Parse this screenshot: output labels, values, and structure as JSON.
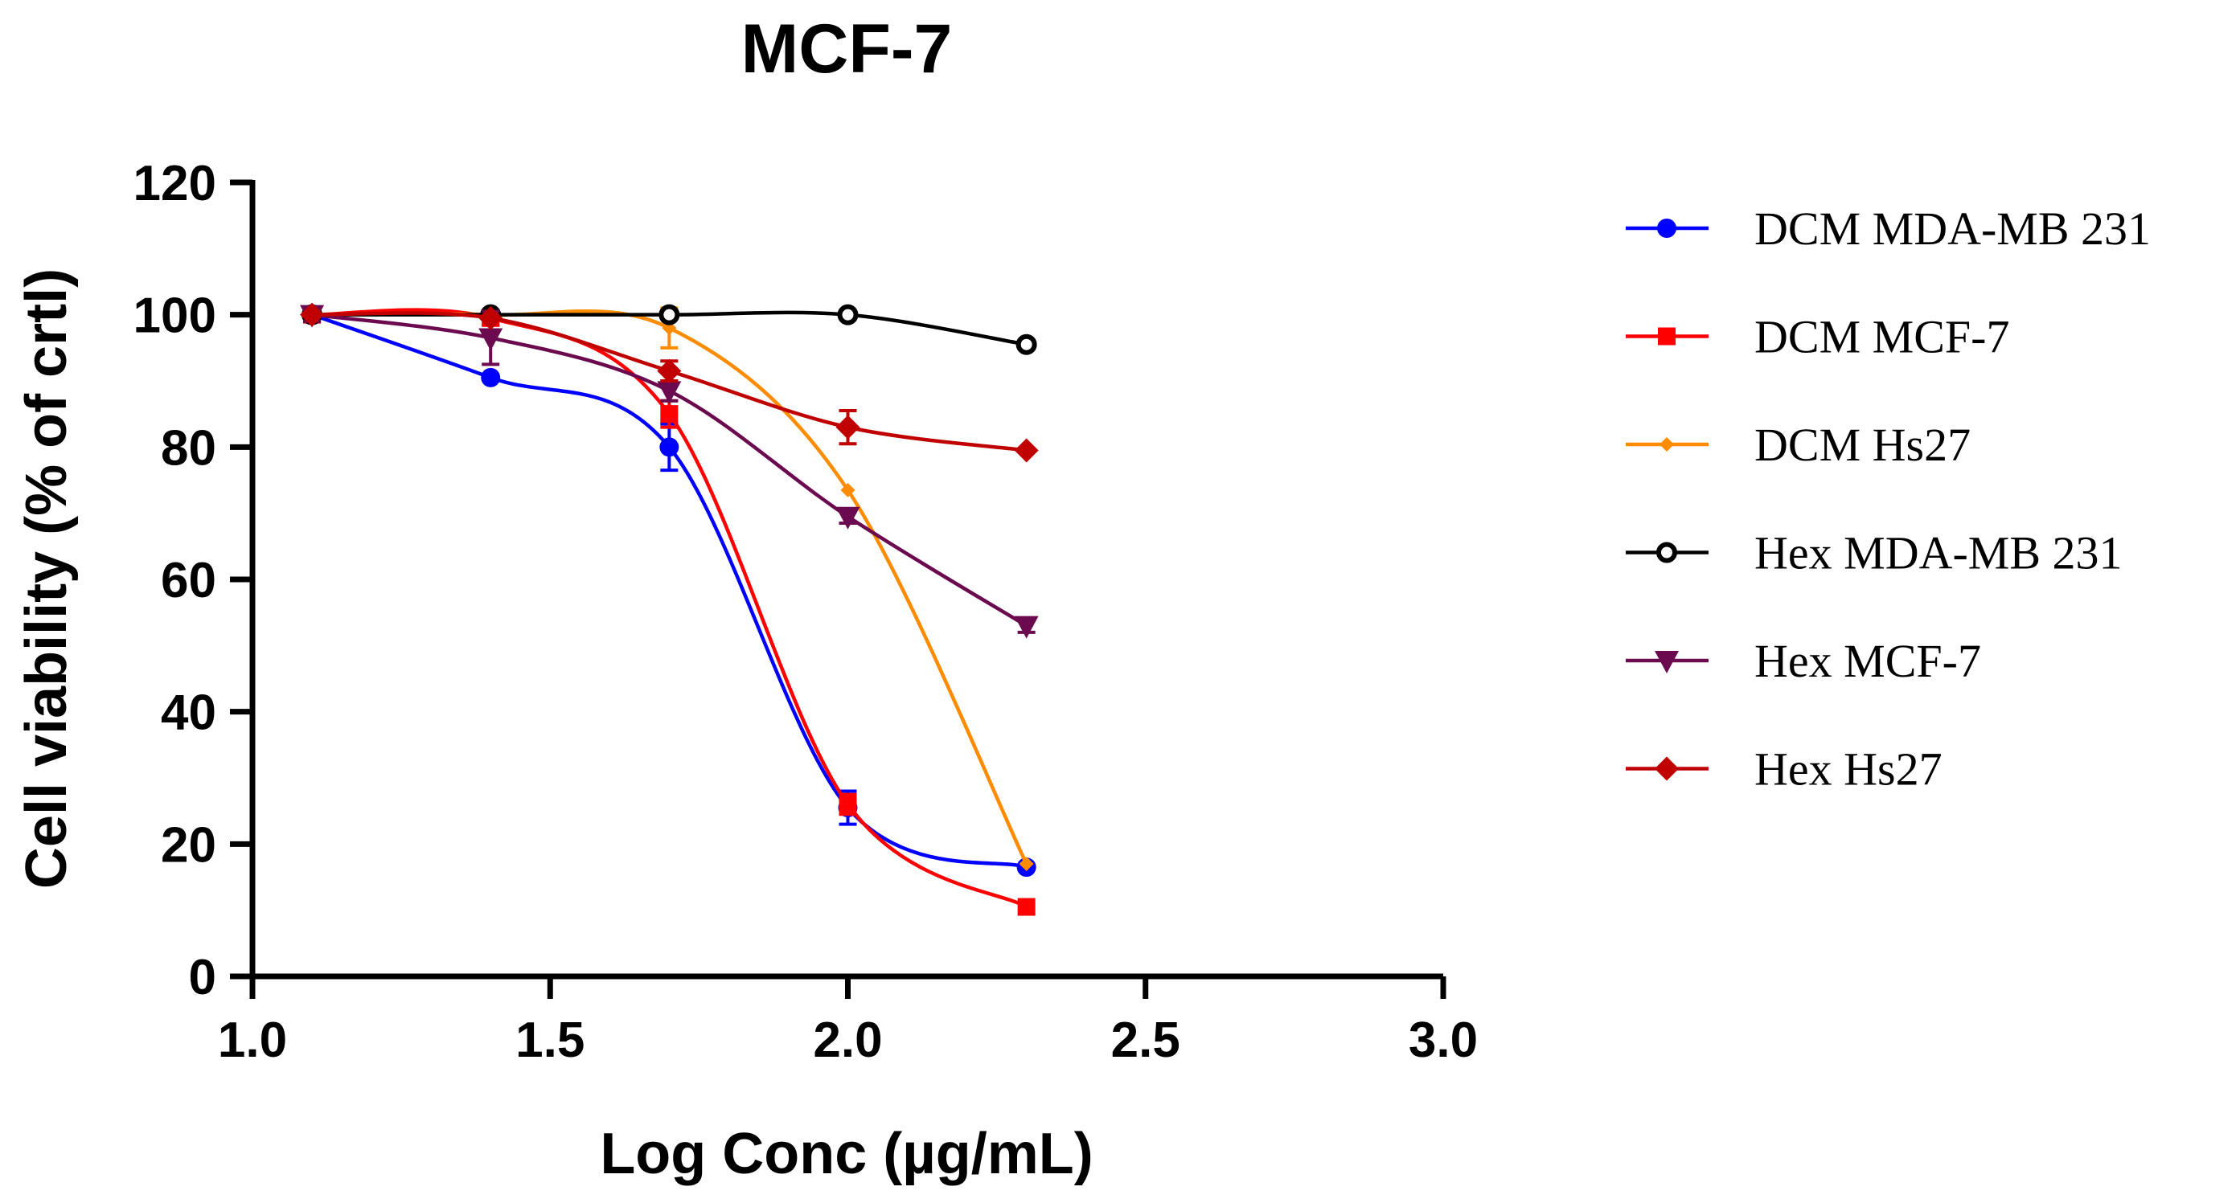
{
  "chart_data": {
    "type": "line",
    "title": "MCF-7",
    "xlabel": "Log Conc (µg/mL)",
    "ylabel": "Cell viability (% of crtl)",
    "xlim": [
      1.0,
      3.0
    ],
    "ylim": [
      0,
      120
    ],
    "xticks": [
      "1.0",
      "1.5",
      "2.0",
      "2.5",
      "3.0"
    ],
    "yticks": [
      "0",
      "20",
      "40",
      "60",
      "80",
      "100",
      "120"
    ],
    "legend_position": "right",
    "x": [
      1.1,
      1.4,
      1.7,
      2.0,
      2.3
    ],
    "series": [
      {
        "name": "DCM MDA-MB 231",
        "color": "#0000ff",
        "marker": "circle",
        "values": [
          100,
          90.5,
          80,
          25.5,
          16.5
        ],
        "errors": [
          1,
          0.5,
          3.5,
          2.5,
          0.5
        ]
      },
      {
        "name": "DCM MCF-7",
        "color": "#ff0000",
        "marker": "square",
        "values": [
          100,
          99.5,
          85,
          26,
          10.5
        ],
        "errors": [
          1,
          1,
          2,
          1.5,
          0.5
        ]
      },
      {
        "name": "DCM Hs27",
        "color": "#ff8c00",
        "marker": "diamond-small",
        "values": [
          100,
          100,
          98,
          73.5,
          17
        ],
        "errors": [
          0.5,
          0.5,
          3,
          0.5,
          0.5
        ]
      },
      {
        "name": "Hex MDA-MB 231",
        "color": "#000000",
        "marker": "open-circle",
        "values": [
          100,
          100,
          100,
          100,
          95.5
        ],
        "errors": [
          0.5,
          0.5,
          0.5,
          0.5,
          0.5
        ]
      },
      {
        "name": "Hex MCF-7",
        "color": "#6b0a4f",
        "marker": "triangle-down",
        "values": [
          100,
          96.5,
          88.5,
          69.5,
          53
        ],
        "errors": [
          1,
          4,
          1.5,
          1,
          1
        ]
      },
      {
        "name": "Hex Hs27",
        "color": "#c00000",
        "marker": "diamond",
        "values": [
          100,
          99.5,
          91.5,
          83,
          79.5
        ],
        "errors": [
          0.5,
          0.5,
          1.5,
          2.5,
          0.5
        ]
      }
    ]
  }
}
